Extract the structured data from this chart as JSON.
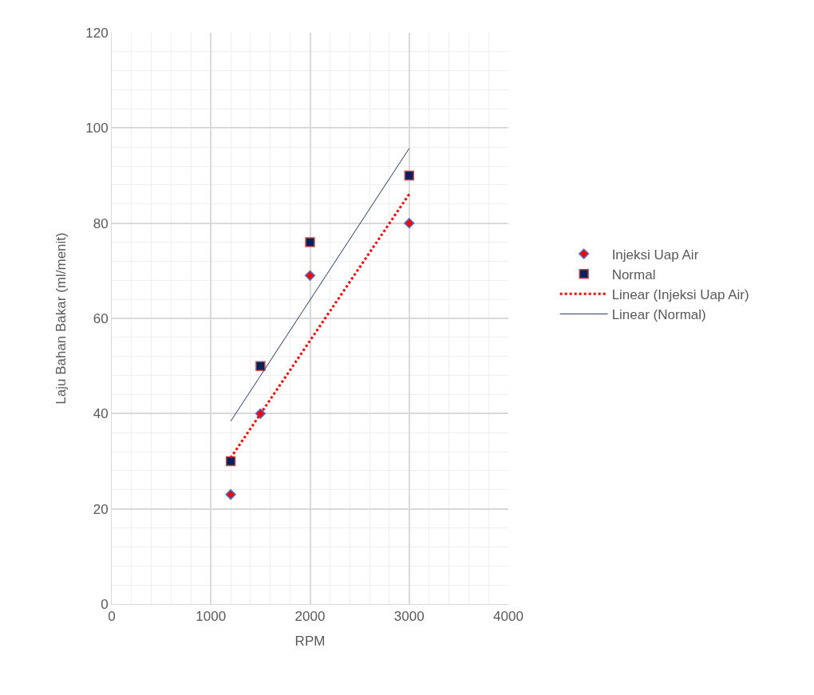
{
  "chart_data": {
    "type": "scatter",
    "xlabel": "RPM",
    "ylabel": "Laju Bahan Bakar (ml/menit)",
    "xlim": [
      0,
      4000
    ],
    "xticks": [
      0,
      1000,
      2000,
      3000,
      4000
    ],
    "ylim": [
      0,
      120
    ],
    "yticks": [
      0,
      20,
      40,
      60,
      80,
      100,
      120
    ],
    "grid": true,
    "legend": "right",
    "series": [
      {
        "name": "Injeksi Uap Air",
        "marker": "diamond",
        "color": "#ff0000",
        "x": [
          1200,
          1500,
          2000,
          3000
        ],
        "values": [
          23,
          40,
          69,
          80
        ]
      },
      {
        "name": "Normal",
        "marker": "square",
        "color": "#002060",
        "x": [
          1200,
          1500,
          2000,
          3000
        ],
        "values": [
          30,
          50,
          76,
          90
        ]
      },
      {
        "name": "Linear (Injeksi Uap Air)",
        "type": "line",
        "line_style": "dotted",
        "color": "#ff0000",
        "x": [
          1200,
          3000
        ],
        "values": [
          30.7,
          86.1
        ]
      },
      {
        "name": "Linear (Normal)",
        "type": "line",
        "line_style": "solid",
        "color": "#1f3864",
        "x": [
          1200,
          3000
        ],
        "values": [
          38.4,
          95.7
        ]
      }
    ]
  }
}
